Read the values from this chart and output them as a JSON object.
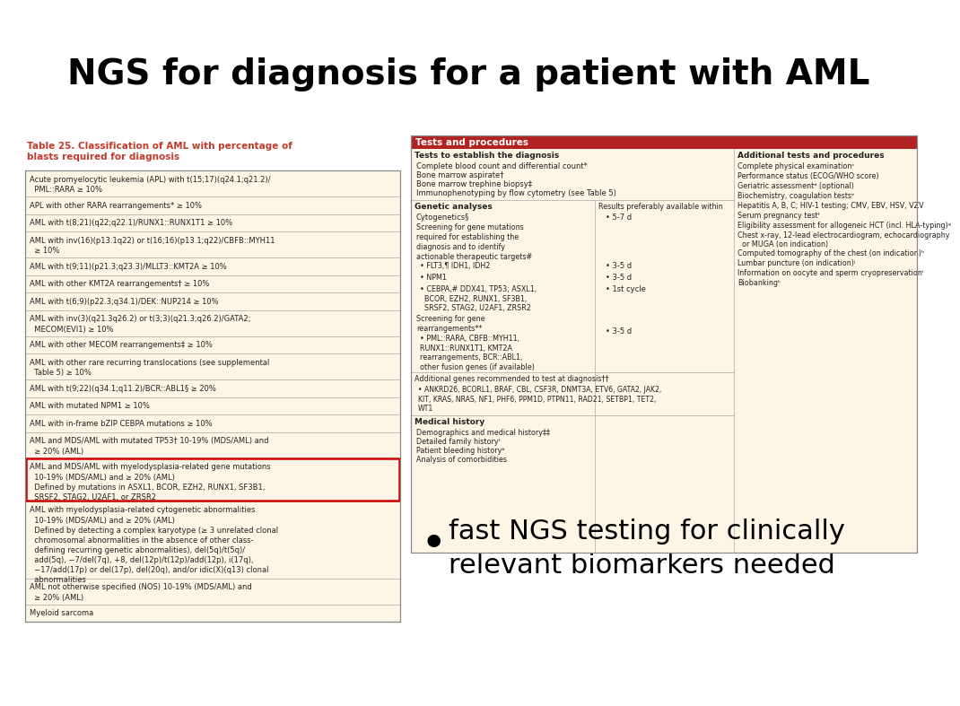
{
  "title": "NGS for diagnosis for a patient with AML",
  "title_fontsize": 28,
  "title_fontweight": "bold",
  "bg_color": "#ffffff",
  "table1_title": "Table 25. Classification of AML with percentage of\nblasts required for diagnosis",
  "table1_title_color": "#c0392b",
  "table1_bg": "#fdf5e6",
  "table1_rows": [
    "Acute promyelocytic leukemia (APL) with t(15;17)(q24.1;q21.2)/\n  PML::RARA ≥ 10%",
    "APL with other RARA rearrangements* ≥ 10%",
    "AML with t(8;21)(q22;q22.1)/RUNX1::RUNX1T1 ≥ 10%",
    "AML with inv(16)(p13.1q22) or t(16;16)(p13.1;q22)/CBFB::MYH11\n  ≥ 10%",
    "AML with t(9;11)(p21.3;q23.3)/MLLT3::KMT2A ≥ 10%",
    "AML with other KMT2A rearrangements† ≥ 10%",
    "AML with t(6;9)(p22.3;q34.1)/DEK::NUP214 ≥ 10%",
    "AML with inv(3)(q21.3q26.2) or t(3;3)(q21.3;q26.2)/GATA2;\n  MECOM(EVI1) ≥ 10%",
    "AML with other MECOM rearrangements‡ ≥ 10%",
    "AML with other rare recurring translocations (see supplemental\n  Table 5) ≥ 10%",
    "AML with t(9;22)(q34.1;q11.2)/BCR::ABL1§ ≥ 20%",
    "AML with mutated NPM1 ≥ 10%",
    "AML with in-frame bZIP CEBPA mutations ≥ 10%",
    "AML and MDS/AML with mutated TP53† 10-19% (MDS/AML) and\n  ≥ 20% (AML)",
    "AML and MDS/AML with myelodysplasia-related gene mutations\n  10-19% (MDS/AML) and ≥ 20% (AML)\n  Defined by mutations in ASXL1, BCOR, EZH2, RUNX1, SF3B1,\n  SRSF2, STAG2, U2AF1, or ZRSR2",
    "AML with myelodysplasia-related cytogenetic abnormalities\n  10-19% (MDS/AML) and ≥ 20% (AML)\n  Defined by detecting a complex karyotype (≥ 3 unrelated clonal\n  chromosomal abnormalities in the absence of other class-\n  defining recurring genetic abnormalities), del(5q)/t(5q)/\n  add(5q), −7/del(7q), +8, del(12p)/t(12p)/add(12p), i(17q),\n  −17/add(17p) or del(17p), del(20q), and/or idic(X)(q13) clonal\n  abnormalities",
    "AML not otherwise specified (NOS) 10-19% (MDS/AML) and\n  ≥ 20% (AML)",
    "Myeloid sarcoma"
  ],
  "highlighted_row": 14,
  "highlight_color": "#cc0000",
  "table2_header": "Tests and procedures",
  "table2_header_bg": "#b22222",
  "table2_header_color": "#ffffff",
  "table2_bg": "#fdf5e6",
  "table2_col1_header": "Tests to establish the diagnosis",
  "table2_col2_header": "Additional tests and procedures",
  "tests_establish": [
    "Complete blood count and differential count*",
    "Bone marrow aspirate†",
    "Bone marrow trephine biopsy‡",
    "Immunophenotyping by flow cytometry (see Table 5)"
  ],
  "additional_tests": [
    "Complete physical examinationᶜ",
    "Performance status (ECOG/WHO score)",
    "Geriatric assessmentᵈ (optional)",
    "Biochemistry, coagulation testsᵉ",
    "Hepatitis A, B, C; HIV-1 testing; CMV, EBV, HSV, VZV",
    "Serum pregnancy testᶠ",
    "Eligibility assessment for allogeneic HCT (incl. HLA-typing)ᵍ",
    "Chest x-ray, 12-lead electrocardiogram, echocardiography\n  or MUGA (on indication)",
    "Computed tomography of the chest (on indication)ʰ",
    "Lumbar puncture (on indication)ʲ",
    "Information on oocyte and sperm cryopreservationˡ",
    "Biobankingᵏ"
  ],
  "genetic_analyses_header": "Genetic analyses",
  "results_header": "Results preferably available within",
  "cytogenetics": "Cytogenetics§",
  "cytogenetics_result": "5-7 d",
  "gene_mutations_text": "Screening for gene mutations\nrequired for establishing the\ndiagnosis and to identify\nactionable therapeutic targets#",
  "gene_list1": [
    "FLT3,¶ IDH1, IDH2",
    "NPM1",
    "CEBPA,# DDX41, TP53; ASXL1,\n  BCOR, EZH2, RUNX1, SF3B1,\n  SRSF2, STAG2, U2AF1, ZRSR2"
  ],
  "gene_list1_results": [
    "3-5 d",
    "3-5 d",
    "1st cycle"
  ],
  "screening_rearrangements": "Screening for gene\nrearrangements**",
  "rearrangements_list": "PML::RARA, CBFB::MYH11,\nRUNX1::RUNX1T1, KMT2A\nrearrangements, BCR::ABL1,\nother fusion genes (if available)",
  "rearrangements_result": "3-5 d",
  "additional_genes_text": "Additional genes recommended to test at diagnosis††",
  "additional_genes_list": "ANKRD26, BCORL1, BRAF, CBL, CSF3R, DNMT3A, ETV6, GATA2, JAK2,\nKIT, KRAS, NRAS, NF1, PHF6, PPM1D, PTPN11, RAD21, SETBP1, TET2,\nWT1",
  "medical_history_header": "Medical history",
  "medical_history_items": [
    "Demographics and medical history‡‡",
    "Detailed family historyᶠ",
    "Patient bleeding historyᵇ",
    "Analysis of comorbidities"
  ],
  "bullet_text": "fast NGS testing for clinically\nrelevant biomarkers needed",
  "bullet_fontsize": 22
}
